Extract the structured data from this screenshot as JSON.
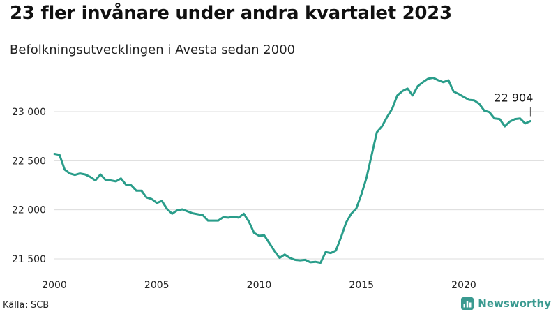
{
  "header": {
    "title": "23 fler invånare under andra kvartalet 2023",
    "subtitle": "Befolkningsutvecklingen i Avesta sedan 2000"
  },
  "footer": {
    "source": "Källa: SCB",
    "brand": "Newsworthy",
    "brand_color": "#3a9a90",
    "brand_icon": "bar-chart-icon"
  },
  "chart_data": {
    "type": "line",
    "title": "23 fler invånare under andra kvartalet 2023",
    "subtitle": "Befolkningsutvecklingen i Avesta sedan 2000",
    "xlabel": "",
    "ylabel": "",
    "xlim": [
      2000,
      2024
    ],
    "ylim": [
      21500,
      23500
    ],
    "grid": true,
    "line_color": "#2a9d8a",
    "x_ticks": [
      2000,
      2005,
      2010,
      2015,
      2020
    ],
    "x_tick_labels": [
      "2000",
      "2005",
      "2010",
      "2015",
      "2020"
    ],
    "y_ticks": [
      21500,
      22000,
      22500,
      23000
    ],
    "y_tick_labels": [
      "21 500",
      "22 000",
      "22 500",
      "23 000"
    ],
    "annotation": {
      "x": 2023.25,
      "y": 22904,
      "label": "22 904"
    },
    "series": [
      {
        "x": [
          2000.0,
          2000.25,
          2000.5,
          2000.75,
          2001.0,
          2001.25,
          2001.5,
          2001.75,
          2002.0,
          2002.25,
          2002.5,
          2002.75,
          2003.0,
          2003.25,
          2003.5,
          2003.75,
          2004.0,
          2004.25,
          2004.5,
          2004.75,
          2005.0,
          2005.25,
          2005.5,
          2005.75,
          2006.0,
          2006.25,
          2006.5,
          2006.75,
          2007.0,
          2007.25,
          2007.5,
          2007.75,
          2008.0,
          2008.25,
          2008.5,
          2008.75,
          2009.0,
          2009.25,
          2009.5,
          2009.75,
          2010.0,
          2010.25,
          2010.5,
          2010.75,
          2011.0,
          2011.25,
          2011.5,
          2011.75,
          2012.0,
          2012.25,
          2012.5,
          2012.75,
          2013.0,
          2013.25,
          2013.5,
          2013.75,
          2014.0,
          2014.25,
          2014.5,
          2014.75,
          2015.0,
          2015.25,
          2015.5,
          2015.75,
          2016.0,
          2016.25,
          2016.5,
          2016.75,
          2017.0,
          2017.25,
          2017.5,
          2017.75,
          2018.0,
          2018.25,
          2018.5,
          2018.75,
          2019.0,
          2019.25,
          2019.5,
          2019.75,
          2020.0,
          2020.25,
          2020.5,
          2020.75,
          2021.0,
          2021.25,
          2021.5,
          2021.75,
          2022.0,
          2022.25,
          2022.5,
          2022.75,
          2023.0,
          2023.25
        ],
        "y": [
          22570,
          22560,
          22410,
          22370,
          22355,
          22370,
          22360,
          22335,
          22300,
          22360,
          22305,
          22300,
          22290,
          22320,
          22255,
          22250,
          22195,
          22195,
          22125,
          22110,
          22070,
          22090,
          22010,
          21960,
          21995,
          22005,
          21985,
          21965,
          21955,
          21945,
          21890,
          21890,
          21890,
          21925,
          21920,
          21930,
          21920,
          21960,
          21880,
          21765,
          21735,
          21740,
          21660,
          21580,
          21510,
          21545,
          21510,
          21490,
          21485,
          21490,
          21465,
          21470,
          21460,
          21570,
          21560,
          21585,
          21720,
          21870,
          21960,
          22015,
          22160,
          22330,
          22560,
          22790,
          22850,
          22945,
          23030,
          23165,
          23210,
          23235,
          23165,
          23260,
          23300,
          23335,
          23345,
          23320,
          23300,
          23320,
          23205,
          23180,
          23150,
          23120,
          23115,
          23080,
          23010,
          22995,
          22930,
          22925,
          22850,
          22900,
          22925,
          22930,
          22880,
          22904
        ]
      }
    ]
  }
}
